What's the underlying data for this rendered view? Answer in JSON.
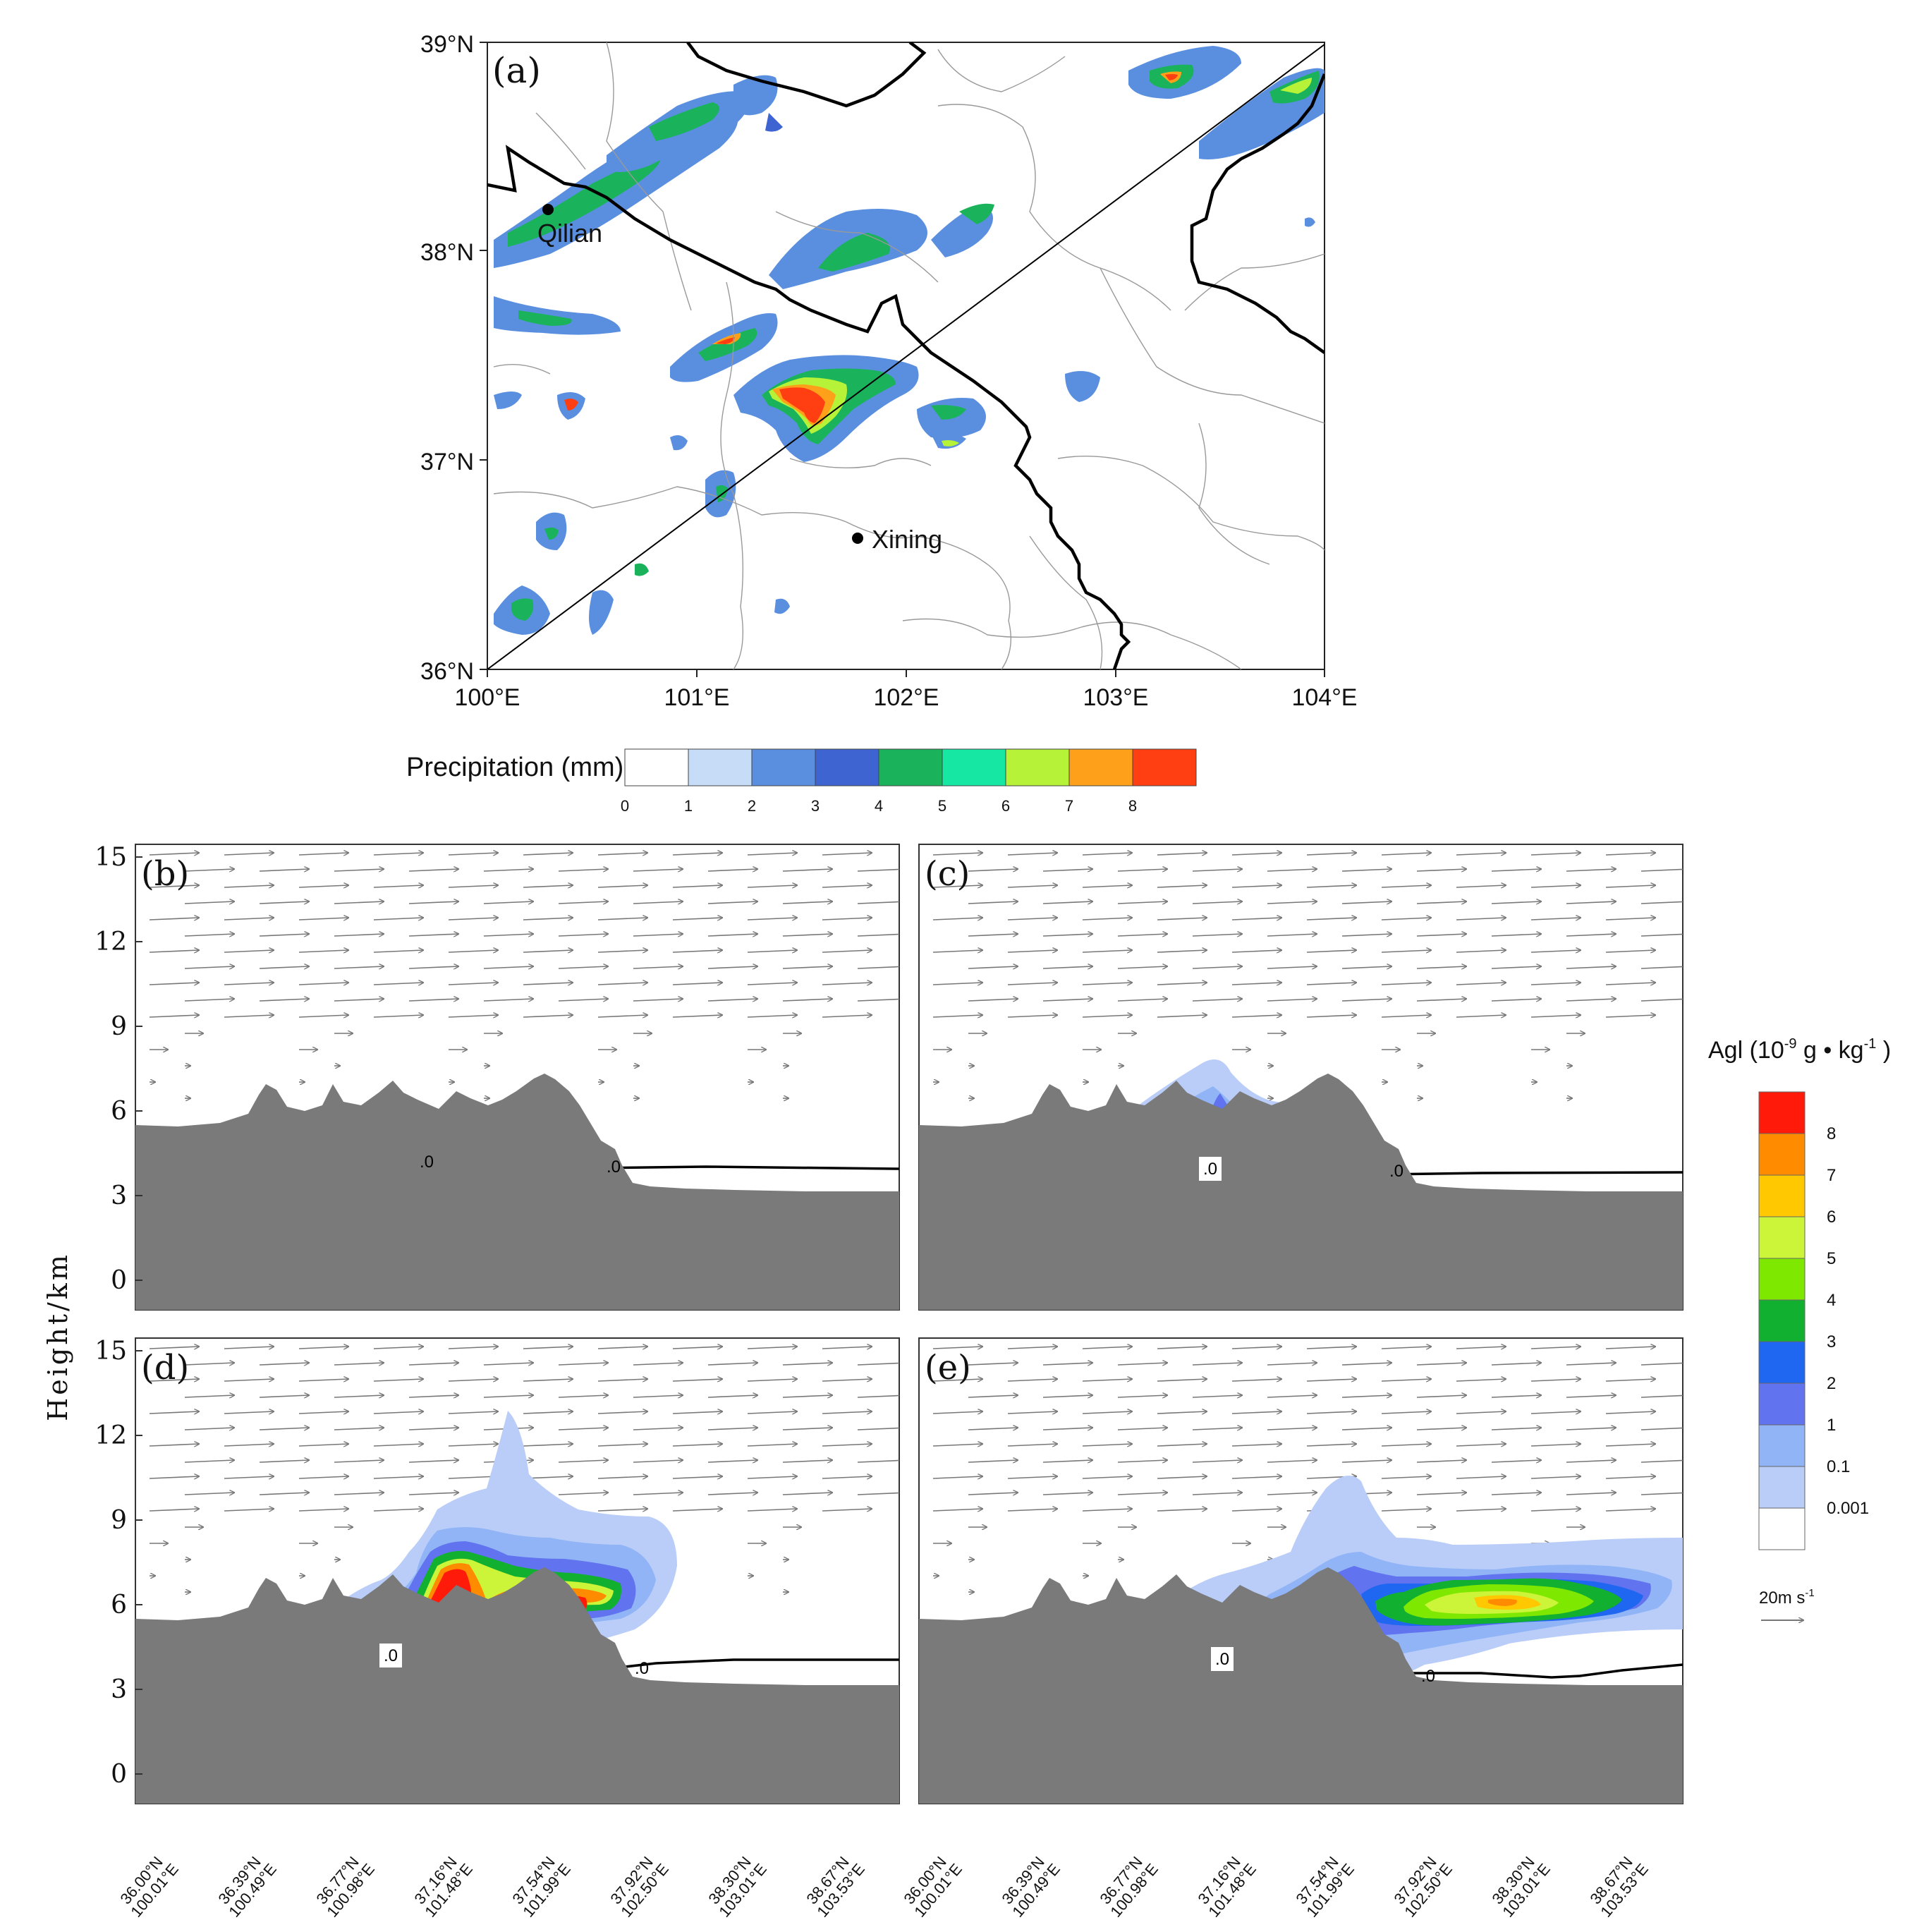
{
  "map": {
    "label": "(a)",
    "lat_ticks": [
      "39°N",
      "38°N",
      "37°N",
      "36°N"
    ],
    "lon_ticks": [
      "100°E",
      "101°E",
      "102°E",
      "103°E",
      "104°E"
    ],
    "cities": [
      {
        "name": "Qilian",
        "lon": 100.29,
        "lat": 38.19
      },
      {
        "name": "Xining",
        "lon": 101.76,
        "lat": 36.62
      }
    ],
    "extent": {
      "lon": [
        100,
        104
      ],
      "lat": [
        36,
        39
      ]
    },
    "cross_section_line": {
      "from": {
        "lon": 100.0,
        "lat": 36.0
      },
      "to": {
        "lon": 104.0,
        "lat": 39.0
      }
    }
  },
  "precip_colorbar": {
    "title": "Precipitation (mm)",
    "ticks": [
      "0",
      "1",
      "2",
      "3",
      "4",
      "5",
      "6",
      "7",
      "8"
    ],
    "colors": [
      "#ffffff",
      "#c6dcf7",
      "#5a8fe0",
      "#3d64d1",
      "#1ab35b",
      "#16e8a3",
      "#b5f238",
      "#ffa01a",
      "#ff3e12"
    ]
  },
  "sections": {
    "panels": [
      {
        "label": "(b)",
        "zero_labels": [
          ".0",
          ".0"
        ]
      },
      {
        "label": "(c)",
        "zero_labels": [
          ".0",
          ".0"
        ]
      },
      {
        "label": "(d)",
        "zero_labels": [
          ".0",
          ".0"
        ]
      },
      {
        "label": "(e)",
        "zero_labels": [
          ".0",
          ".0"
        ]
      }
    ],
    "y_ticks": [
      "15",
      "12",
      "9",
      "6",
      "3",
      "0"
    ],
    "y_label": "Height/km",
    "x_ticks": [
      {
        "lat": "36.00°N",
        "lon": "100.01°E"
      },
      {
        "lat": "36.39°N",
        "lon": "100.49°E"
      },
      {
        "lat": "36.77°N",
        "lon": "100.98°E"
      },
      {
        "lat": "37.16°N",
        "lon": "101.48°E"
      },
      {
        "lat": "37.54°N",
        "lon": "101.99°E"
      },
      {
        "lat": "37.92°N",
        "lon": "102.50°E"
      },
      {
        "lat": "38.30°N",
        "lon": "103.01°E"
      },
      {
        "lat": "38.67°N",
        "lon": "103.53°E"
      }
    ]
  },
  "agl_colorbar": {
    "title": "Agl (10",
    "title_sup": "-9",
    "title_rest": " g • kg",
    "title_sup2": "-1",
    "title_end": " )",
    "ticks": [
      "8",
      "7",
      "6",
      "5",
      "4",
      "3",
      "2",
      "1",
      "0.1",
      "0.001"
    ],
    "colors": [
      "#ff1a0a",
      "#ff8c00",
      "#ffc800",
      "#ccf53a",
      "#7fe800",
      "#12b030",
      "#1f66f0",
      "#6173ee",
      "#90b4f6",
      "#b9cdf8",
      "#ffffff"
    ]
  },
  "wind_reference": {
    "label": "20m s",
    "label_sup": "-1",
    "speed_ms": 20
  }
}
